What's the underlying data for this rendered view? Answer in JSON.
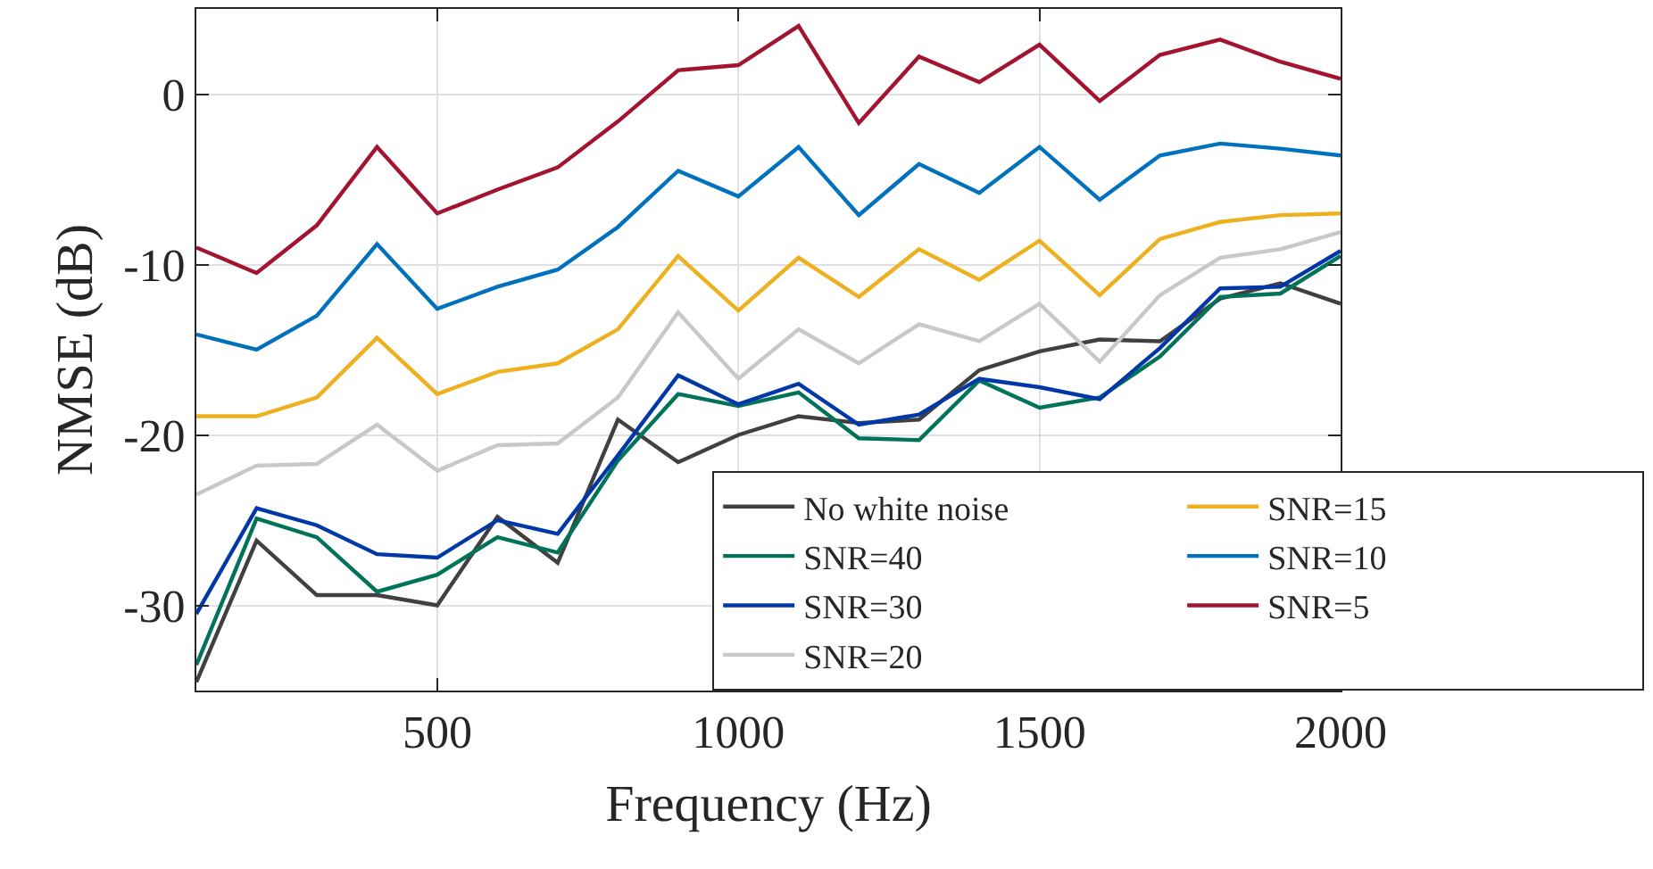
{
  "chart_data": {
    "type": "line",
    "xlabel": "Frequency (Hz)",
    "ylabel": "NMSE (dB)",
    "x": [
      100,
      200,
      300,
      400,
      500,
      600,
      700,
      800,
      900,
      1000,
      1100,
      1200,
      1300,
      1400,
      1500,
      1600,
      1700,
      1800,
      1900,
      2000
    ],
    "xlim": [
      100,
      2000
    ],
    "xticks": [
      500,
      1000,
      1500,
      2000
    ],
    "ylim": [
      -35,
      5
    ],
    "yticks": [
      -30,
      -20,
      -10,
      0
    ],
    "grid": true,
    "legend": "bottom right",
    "line_style": "solid",
    "marker": "none",
    "series": [
      {
        "name": "No white noise",
        "color": "#404040",
        "values": [
          -34.5,
          -26.2,
          -29.4,
          -29.4,
          -30.0,
          -24.8,
          -27.5,
          -19.1,
          -21.6,
          -20.0,
          -18.9,
          -19.3,
          -19.1,
          -16.2,
          -15.1,
          -14.4,
          -14.5,
          -12.0,
          -11.1,
          -12.3
        ]
      },
      {
        "name": "SNR=40",
        "color": "#00735a",
        "values": [
          -33.5,
          -24.9,
          -26.0,
          -29.2,
          -28.2,
          -26.0,
          -26.9,
          -21.5,
          -17.6,
          -18.3,
          -17.5,
          -20.2,
          -20.3,
          -16.8,
          -18.4,
          -17.8,
          -15.4,
          -11.9,
          -11.7,
          -9.5
        ]
      },
      {
        "name": "SNR=30",
        "color": "#0038a8",
        "values": [
          -30.5,
          -24.3,
          -25.3,
          -27.0,
          -27.2,
          -25.0,
          -25.8,
          -21.2,
          -16.5,
          -18.2,
          -17.0,
          -19.4,
          -18.8,
          -16.7,
          -17.2,
          -17.9,
          -14.9,
          -11.4,
          -11.3,
          -9.2
        ]
      },
      {
        "name": "SNR=20",
        "color": "#c8c8c8",
        "values": [
          -23.5,
          -21.8,
          -21.7,
          -19.4,
          -22.1,
          -20.6,
          -20.5,
          -17.8,
          -12.8,
          -16.7,
          -13.8,
          -15.8,
          -13.5,
          -14.5,
          -12.3,
          -15.7,
          -11.8,
          -9.6,
          -9.1,
          -8.1
        ]
      },
      {
        "name": "SNR=15",
        "color": "#edb120",
        "values": [
          -18.9,
          -18.9,
          -17.8,
          -14.3,
          -17.6,
          -16.3,
          -15.8,
          -13.8,
          -9.5,
          -12.7,
          -9.6,
          -11.9,
          -9.1,
          -10.9,
          -8.6,
          -11.8,
          -8.5,
          -7.5,
          -7.1,
          -7.0
        ]
      },
      {
        "name": "SNR=10",
        "color": "#0072bd",
        "values": [
          -14.1,
          -15.0,
          -13.0,
          -8.8,
          -12.6,
          -11.3,
          -10.3,
          -7.8,
          -4.5,
          -6.0,
          -3.1,
          -7.1,
          -4.1,
          -5.8,
          -3.1,
          -6.2,
          -3.6,
          -2.9,
          -3.2,
          -3.6
        ]
      },
      {
        "name": "SNR=5",
        "color": "#a2142f",
        "values": [
          -9.0,
          -10.5,
          -7.7,
          -3.1,
          -7.0,
          -5.6,
          -4.3,
          -1.6,
          1.4,
          1.7,
          4.0,
          -1.7,
          2.2,
          0.7,
          2.9,
          -0.4,
          2.3,
          3.2,
          1.9,
          0.9
        ]
      }
    ]
  }
}
